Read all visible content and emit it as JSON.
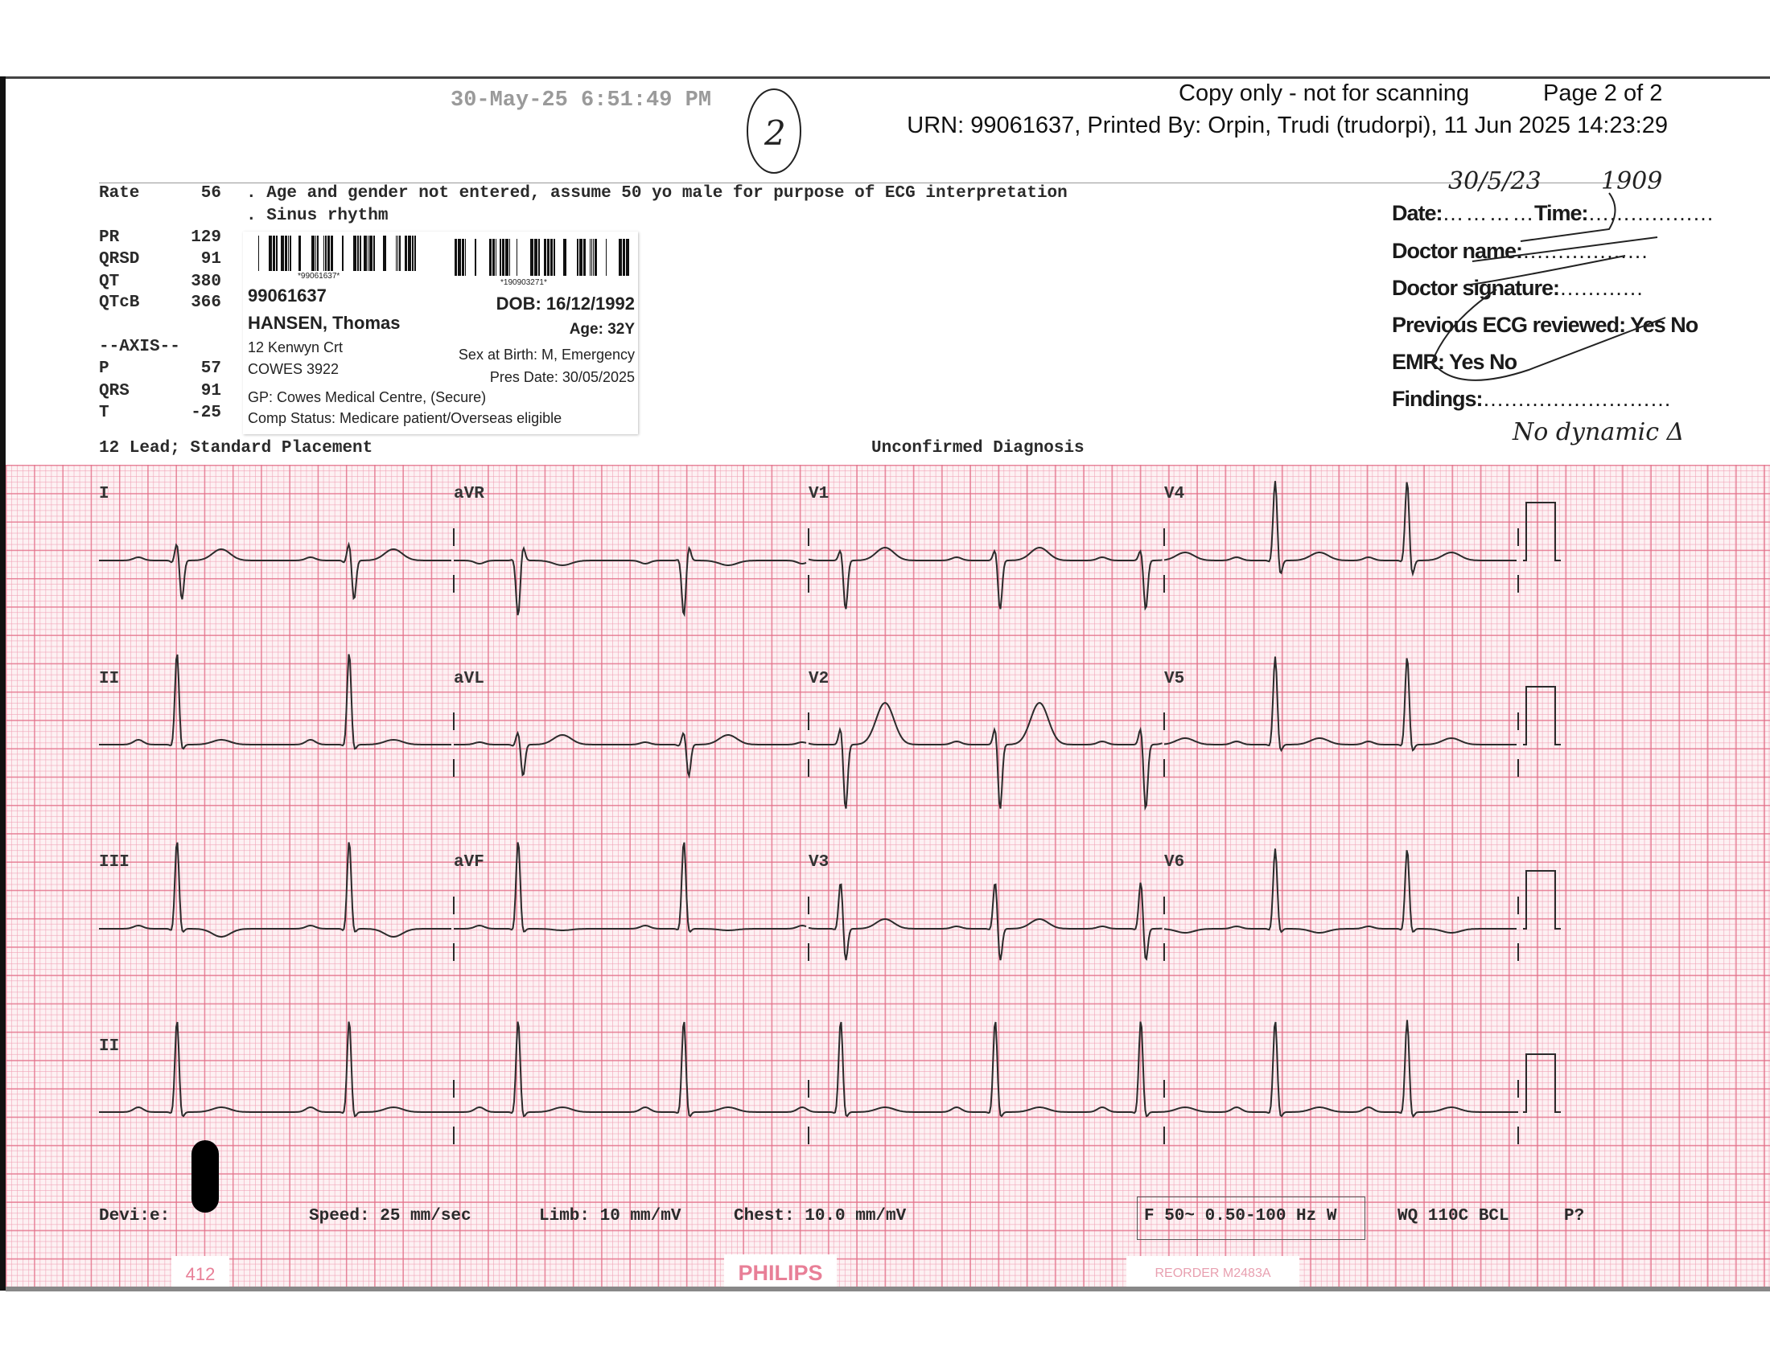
{
  "header": {
    "print_timestamp": "30-May-25 6:51:49 PM",
    "copy_notice": "Copy only - not for scanning",
    "page": "Page 2 of 2",
    "urn_line": "URN: 99061637, Printed By: Orpin, Trudi (trudorpi), 11 Jun 2025 14:23:29",
    "page_number_handwritten": "2"
  },
  "measurements": [
    {
      "label": "Rate",
      "value": "56"
    },
    {
      "label": "PR",
      "value": "129"
    },
    {
      "label": "QRSD",
      "value": "91"
    },
    {
      "label": "QT",
      "value": "380"
    },
    {
      "label": "QTcB",
      "value": "366"
    }
  ],
  "axis": {
    "title": "--AXIS--",
    "items": [
      {
        "label": "P",
        "value": "57"
      },
      {
        "label": "QRS",
        "value": "91"
      },
      {
        "label": "T",
        "value": "-25"
      }
    ]
  },
  "interpretation": [
    ". Age and gender not entered, assume  50 yo male for purpose of ECG interpretation",
    ". Sinus rhythm"
  ],
  "lead_placement": "12 Lead; Standard Placement",
  "diagnosis_status": "Unconfirmed Diagnosis",
  "patient_label": {
    "barcode1_text": "*99061637*",
    "barcode2_text": "*190903271*",
    "urn": "99061637",
    "dob": "DOB: 16/12/1992",
    "name": "HANSEN, Thomas",
    "age": "Age: 32Y",
    "address1": "12 Kenwyn Crt",
    "sex": "Sex at Birth: M, Emergency",
    "address2": "COWES 3922",
    "pres_date": "Pres Date: 30/05/2025",
    "gp": "GP: Cowes Medical Centre, (Secure)",
    "comp_status": "Comp Status: Medicare patient/Overseas eligible"
  },
  "review_form": {
    "date_label": "Date:",
    "date_value": "30/5/23",
    "time_label": "Time:",
    "time_value": "1909",
    "doctor_name_label": "Doctor name:",
    "doctor_signature_label": "Doctor signature:",
    "previous_ecg_label": "Previous ECG reviewed:",
    "emr_label": "EMR:",
    "yes": "Yes",
    "no": "No",
    "findings_label": "Findings:",
    "findings_value": "No dynamic Δ"
  },
  "leads": [
    [
      "I",
      "aVR",
      "V1",
      "V4"
    ],
    [
      "II",
      "aVL",
      "V2",
      "V5"
    ],
    [
      "III",
      "aVF",
      "V3",
      "V6"
    ],
    [
      "II"
    ]
  ],
  "footer": {
    "device": "Devi:e:",
    "speed": "Speed: 25 mm/sec",
    "limb": "Limb: 10 mm/mV",
    "chest": "Chest: 10.0 mm/mV",
    "filter": "F 50~ 0.50-100 Hz W",
    "device_code": "WQ 110C BCL",
    "p_flag": "P?",
    "sheet_number": "412",
    "brand": "PHILIPS",
    "reorder": "REORDER M2483A"
  },
  "colors": {
    "grid_major": "#e26e87",
    "grid_minor": "#f0a0b4",
    "paper": "#fdf1f3",
    "trace": "#2b2b2b",
    "brand": "#e87f97"
  }
}
